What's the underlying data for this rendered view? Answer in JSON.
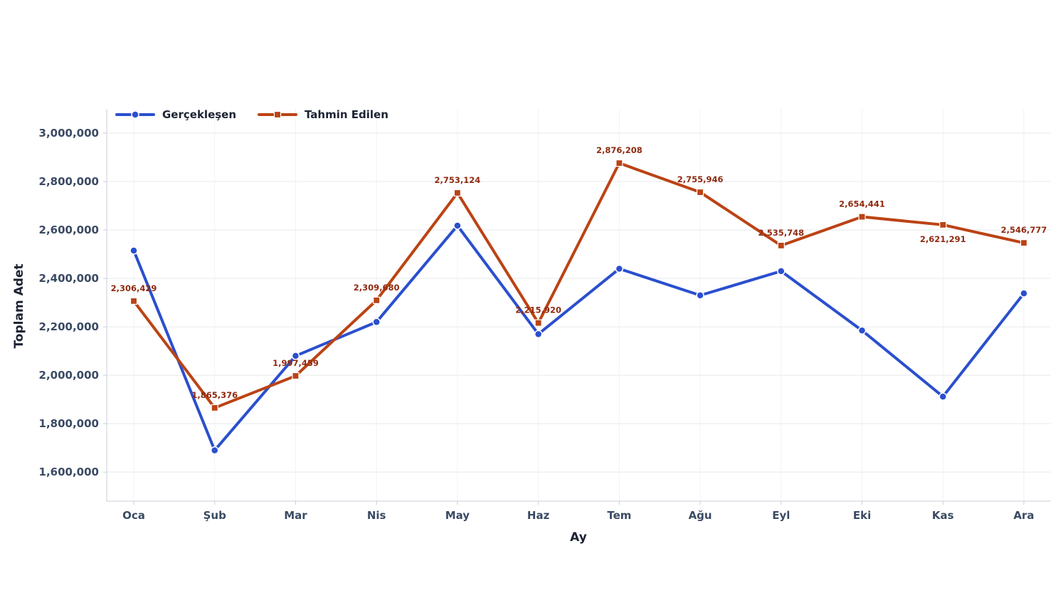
{
  "chart_data": {
    "type": "line",
    "title": "",
    "xlabel": "Ay",
    "ylabel": "Toplam Adet",
    "categories": [
      "Oca",
      "Şub",
      "Mar",
      "Nis",
      "May",
      "Haz",
      "Tem",
      "Ağu",
      "Eyl",
      "Eki",
      "Kas",
      "Ara"
    ],
    "ylim": [
      1480000,
      3100000
    ],
    "yticks": [
      1600000,
      1800000,
      2000000,
      2200000,
      2400000,
      2600000,
      2800000,
      3000000
    ],
    "ytick_labels": [
      "1,600,000",
      "1,800,000",
      "2,000,000",
      "2,200,000",
      "2,400,000",
      "2,600,000",
      "2,800,000",
      "3,000,000"
    ],
    "grid": true,
    "legend_position": "top-left",
    "series": [
      {
        "name": "Gerçekleşen",
        "color": "#2a4fce",
        "marker": "circle",
        "values": [
          2515000,
          1690000,
          2080000,
          2220000,
          2618000,
          2170000,
          2440000,
          2330000,
          2430000,
          2185000,
          1912000,
          2338000
        ],
        "data_labels": []
      },
      {
        "name": "Tahmin Edilen",
        "color": "#bb4314",
        "label_color": "#8f2a10",
        "marker": "square",
        "values": [
          2306429,
          1865376,
          1997459,
          2309680,
          2753124,
          2215920,
          2876208,
          2755946,
          2535748,
          2654441,
          2621291,
          2546777
        ],
        "data_labels": [
          "2,306,429",
          "1,865,376",
          "1,997,459",
          "2,309,680",
          "2,753,124",
          "2,215,920",
          "2,876,208",
          "2,755,946",
          "2,535,748",
          "2,654,441",
          "2,621,291",
          "2,546,777"
        ],
        "label_below": [
          false,
          false,
          false,
          false,
          false,
          false,
          false,
          false,
          false,
          false,
          true,
          false
        ]
      }
    ]
  }
}
